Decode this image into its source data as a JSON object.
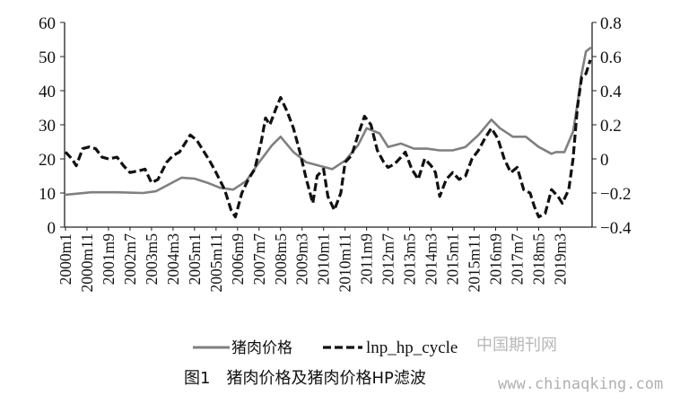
{
  "caption": "图1　猪肉价格及猪肉价格HP滤波",
  "watermark": {
    "site_name": "中国期刊网",
    "url": "www.chinaqking.com"
  },
  "chart_data": {
    "type": "line",
    "title": "",
    "xlabel": "",
    "ylabel": "",
    "ylim": [
      0,
      60
    ],
    "y2lim": [
      -0.4,
      0.8
    ],
    "yticks": [
      "0",
      "10",
      "20",
      "30",
      "40",
      "50",
      "60"
    ],
    "y2ticks": [
      "-0.4",
      "-0.2",
      "0",
      "0.2",
      "0.4",
      "0.6",
      "0.8"
    ],
    "xticks": [
      "2000m1",
      "2000m11",
      "2001m9",
      "2002m7",
      "2003m5",
      "2004m3",
      "2005m1",
      "2005m11",
      "2006m9",
      "2007m7",
      "2008m5",
      "2009m3",
      "2010m1",
      "2010m11",
      "2011m9",
      "2012m7",
      "2013m5",
      "2014m3",
      "2015m1",
      "2015m11",
      "2016m9",
      "2017m7",
      "2018m5",
      "2019m3"
    ],
    "legend_position": "bottom",
    "series": [
      {
        "name": "猪肉价格",
        "axis": "left",
        "color": "#808080",
        "style": "solid",
        "points": [
          [
            "2000m1",
            9.5
          ],
          [
            "2001m1",
            10.2
          ],
          [
            "2002m1",
            10.2
          ],
          [
            "2003m1",
            10.0
          ],
          [
            "2003m7",
            10.5
          ],
          [
            "2004m1",
            12.5
          ],
          [
            "2004m7",
            14.5
          ],
          [
            "2005m1",
            14.2
          ],
          [
            "2005m7",
            13.0
          ],
          [
            "2006m1",
            11.5
          ],
          [
            "2006m7",
            11.0
          ],
          [
            "2007m1",
            13.5
          ],
          [
            "2007m7",
            19.0
          ],
          [
            "2008m1",
            24.0
          ],
          [
            "2008m5",
            26.5
          ],
          [
            "2008m11",
            22.0
          ],
          [
            "2009m5",
            19.0
          ],
          [
            "2009m11",
            18.0
          ],
          [
            "2010m5",
            17.0
          ],
          [
            "2010m11",
            19.5
          ],
          [
            "2011m5",
            24.0
          ],
          [
            "2011m9",
            29.0
          ],
          [
            "2012m3",
            27.5
          ],
          [
            "2012m7",
            23.5
          ],
          [
            "2013m1",
            24.5
          ],
          [
            "2013m7",
            23.0
          ],
          [
            "2014m1",
            23.0
          ],
          [
            "2014m7",
            22.5
          ],
          [
            "2015m1",
            22.5
          ],
          [
            "2015m7",
            23.5
          ],
          [
            "2016m1",
            27.0
          ],
          [
            "2016m7",
            31.5
          ],
          [
            "2016m11",
            29.0
          ],
          [
            "2017m5",
            26.5
          ],
          [
            "2017m11",
            26.5
          ],
          [
            "2018m5",
            23.5
          ],
          [
            "2018m11",
            21.5
          ],
          [
            "2019m1",
            22.0
          ],
          [
            "2019m5",
            22.0
          ],
          [
            "2019m9",
            28.0
          ],
          [
            "2019m11",
            36.0
          ],
          [
            "2020m1",
            45.0
          ],
          [
            "2020m3",
            51.5
          ],
          [
            "2020m5",
            52.5
          ]
        ]
      },
      {
        "name": "lnp_hp_cycle",
        "axis": "right",
        "color": "#111111",
        "style": "dashed",
        "points": [
          [
            "2000m1",
            0.04
          ],
          [
            "2000m4",
            0.0
          ],
          [
            "2000m6",
            -0.04
          ],
          [
            "2000m9",
            0.06
          ],
          [
            "2000m12",
            0.07
          ],
          [
            "2001m3",
            0.06
          ],
          [
            "2001m6",
            0.01
          ],
          [
            "2001m9",
            0.0
          ],
          [
            "2002m1",
            0.01
          ],
          [
            "2002m4",
            -0.04
          ],
          [
            "2002m7",
            -0.08
          ],
          [
            "2002m11",
            -0.07
          ],
          [
            "2003m2",
            -0.06
          ],
          [
            "2003m5",
            -0.14
          ],
          [
            "2003m8",
            -0.12
          ],
          [
            "2003m12",
            -0.02
          ],
          [
            "2004m3",
            0.02
          ],
          [
            "2004m6",
            0.04
          ],
          [
            "2004m9",
            0.1
          ],
          [
            "2004m11",
            0.14
          ],
          [
            "2005m2",
            0.11
          ],
          [
            "2005m5",
            0.05
          ],
          [
            "2005m8",
            -0.01
          ],
          [
            "2005m11",
            -0.08
          ],
          [
            "2006m3",
            -0.18
          ],
          [
            "2006m6",
            -0.3
          ],
          [
            "2006m8",
            -0.34
          ],
          [
            "2006m11",
            -0.2
          ],
          [
            "2007m2",
            -0.12
          ],
          [
            "2007m5",
            -0.06
          ],
          [
            "2007m8",
            0.1
          ],
          [
            "2007m10",
            0.24
          ],
          [
            "2007m12",
            0.2
          ],
          [
            "2008m3",
            0.3
          ],
          [
            "2008m5",
            0.36
          ],
          [
            "2008m8",
            0.28
          ],
          [
            "2008m11",
            0.18
          ],
          [
            "2009m2",
            0.04
          ],
          [
            "2009m5",
            -0.12
          ],
          [
            "2009m8",
            -0.26
          ],
          [
            "2009m10",
            -0.1
          ],
          [
            "2010m1",
            -0.06
          ],
          [
            "2010m3",
            -0.22
          ],
          [
            "2010m6",
            -0.3
          ],
          [
            "2010m9",
            -0.2
          ],
          [
            "2010m11",
            -0.02
          ],
          [
            "2011m2",
            0.02
          ],
          [
            "2011m5",
            0.14
          ],
          [
            "2011m8",
            0.25
          ],
          [
            "2011m11",
            0.2
          ],
          [
            "2012m2",
            0.05
          ],
          [
            "2012m5",
            -0.02
          ],
          [
            "2012m7",
            -0.05
          ],
          [
            "2012m10",
            -0.03
          ],
          [
            "2013m1",
            0.01
          ],
          [
            "2013m3",
            0.04
          ],
          [
            "2013m6",
            -0.06
          ],
          [
            "2013m9",
            -0.12
          ],
          [
            "2013m12",
            0.0
          ],
          [
            "2014m3",
            -0.04
          ],
          [
            "2014m5",
            -0.08
          ],
          [
            "2014m7",
            -0.22
          ],
          [
            "2014m10",
            -0.12
          ],
          [
            "2015m1",
            -0.08
          ],
          [
            "2015m4",
            -0.12
          ],
          [
            "2015m7",
            -0.1
          ],
          [
            "2015m10",
            0.0
          ],
          [
            "2016m1",
            0.05
          ],
          [
            "2016m4",
            0.12
          ],
          [
            "2016m7",
            0.18
          ],
          [
            "2016m10",
            0.12
          ],
          [
            "2017m1",
            0.0
          ],
          [
            "2017m4",
            -0.08
          ],
          [
            "2017m7",
            -0.05
          ],
          [
            "2017m10",
            -0.18
          ],
          [
            "2018m1",
            -0.2
          ],
          [
            "2018m3",
            -0.28
          ],
          [
            "2018m5",
            -0.34
          ],
          [
            "2018m8",
            -0.32
          ],
          [
            "2018m11",
            -0.18
          ],
          [
            "2019m2",
            -0.22
          ],
          [
            "2019m4",
            -0.26
          ],
          [
            "2019m7",
            -0.18
          ],
          [
            "2019m9",
            0.0
          ],
          [
            "2019m11",
            0.3
          ],
          [
            "2020m1",
            0.48
          ],
          [
            "2020m3",
            0.5
          ],
          [
            "2020m5",
            0.58
          ]
        ]
      }
    ]
  }
}
